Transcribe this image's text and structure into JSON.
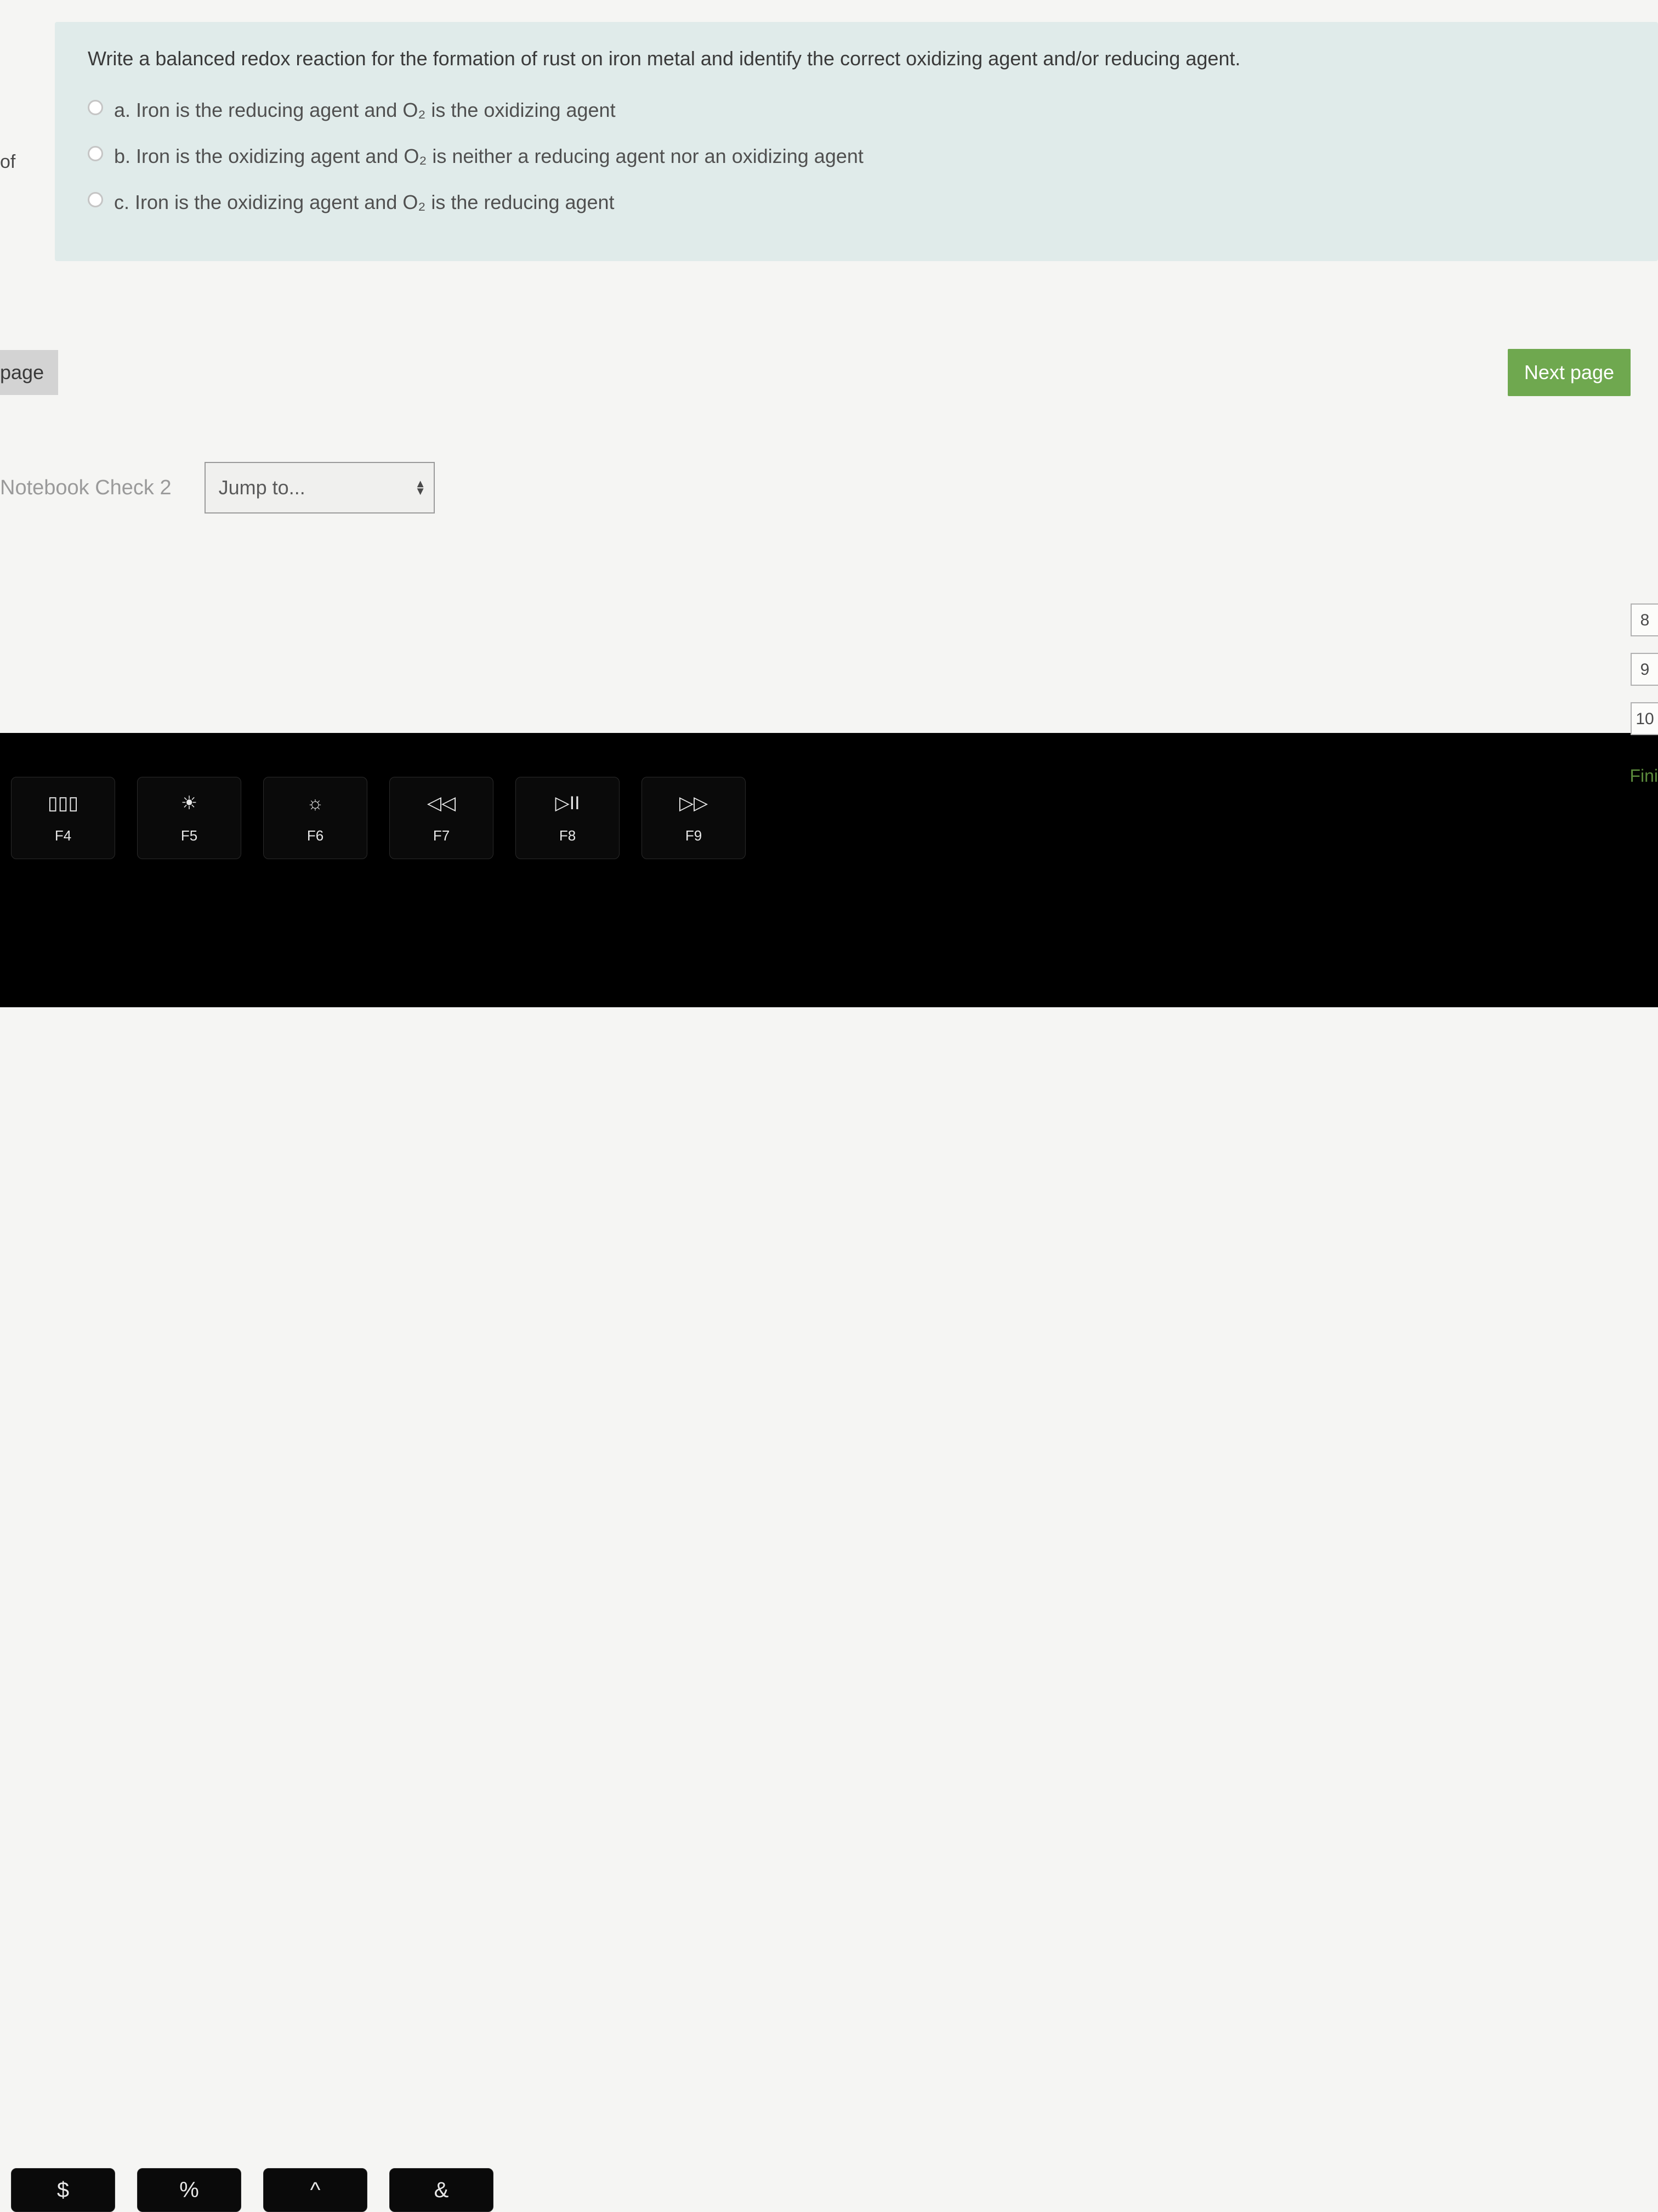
{
  "colors": {
    "card_bg": "#e0ebea",
    "page_bg": "#f5f5f3",
    "next_btn_bg": "#6fa84f",
    "next_btn_text": "#ffffff",
    "prev_btn_bg": "#d3d3d3",
    "text": "#4a4a4a",
    "muted": "#9a9a9a",
    "radio_border": "#c5c5c5",
    "side_finish": "#5b8a3c"
  },
  "left_label": "of",
  "question": {
    "prompt": "Write a balanced redox reaction for the formation of rust on iron metal and identify the correct oxidizing agent and/or reducing agent.",
    "options": [
      {
        "letter": "a.",
        "text": "Iron is the reducing agent and O₂ is the oxidizing agent"
      },
      {
        "letter": "b.",
        "text": "Iron is the oxidizing agent and O₂ is neither a reducing agent nor an oxidizing agent"
      },
      {
        "letter": "c.",
        "text": "Iron is the oxidizing agent and O₂ is the reducing agent"
      }
    ]
  },
  "nav": {
    "prev_label": "page",
    "next_label": "Next page"
  },
  "notebook": {
    "label": "Notebook Check 2",
    "jump_placeholder": "Jump to..."
  },
  "side_items": [
    "8",
    "9",
    "10"
  ],
  "side_finish": "Fini",
  "keyboard": {
    "keys": [
      {
        "glyph": "▯▯▯",
        "label": "F4"
      },
      {
        "glyph": "☀",
        "label": "F5"
      },
      {
        "glyph": "☼",
        "label": "F6"
      },
      {
        "glyph": "◁◁",
        "label": "F7"
      },
      {
        "glyph": "▷II",
        "label": "F8"
      },
      {
        "glyph": "▷▷",
        "label": "F9"
      }
    ],
    "row2": [
      "$",
      "%",
      "^",
      "&"
    ]
  }
}
